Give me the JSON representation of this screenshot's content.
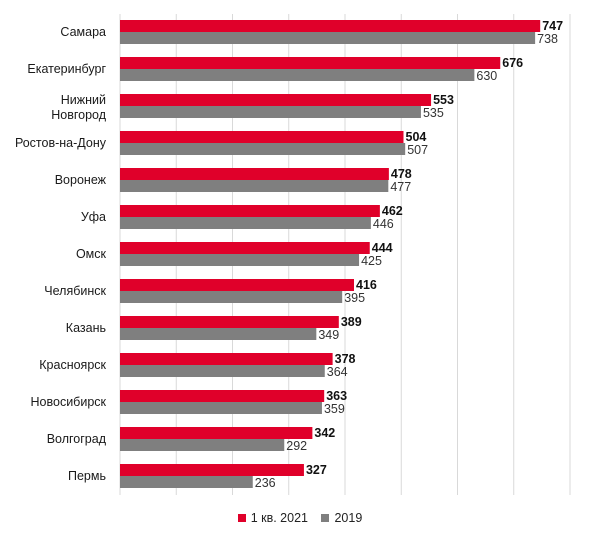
{
  "chart_data": {
    "type": "bar",
    "orientation": "horizontal",
    "categories": [
      "Самара",
      "Екатеринбург",
      "Нижний Новгород",
      "Ростов-на-Дону",
      "Воронеж",
      "Уфа",
      "Омск",
      "Челябинск",
      "Казань",
      "Красноярск",
      "Новосибирск",
      "Волгоград",
      "Пермь"
    ],
    "category_lines": [
      [
        "Самара"
      ],
      [
        "Екатеринбург"
      ],
      [
        "Нижний",
        "Новгород"
      ],
      [
        "Ростов-на-Дону"
      ],
      [
        "Воронеж"
      ],
      [
        "Уфа"
      ],
      [
        "Омск"
      ],
      [
        "Челябинск"
      ],
      [
        "Казань"
      ],
      [
        "Красноярск"
      ],
      [
        "Новосибирск"
      ],
      [
        "Волгоград"
      ],
      [
        "Пермь"
      ]
    ],
    "series": [
      {
        "name": "1 кв. 2021",
        "color": "#e0002a",
        "values": [
          747,
          676,
          553,
          504,
          478,
          462,
          444,
          416,
          389,
          378,
          363,
          342,
          327
        ]
      },
      {
        "name": "2019",
        "color": "#7f7f7f",
        "values": [
          738,
          630,
          535,
          507,
          477,
          446,
          425,
          395,
          349,
          364,
          359,
          292,
          236
        ]
      }
    ],
    "xlim": [
      0,
      800
    ],
    "grid": true,
    "legend_position": "bottom"
  },
  "legend": {
    "series_a": "1 кв. 2021",
    "series_b": "2019"
  }
}
